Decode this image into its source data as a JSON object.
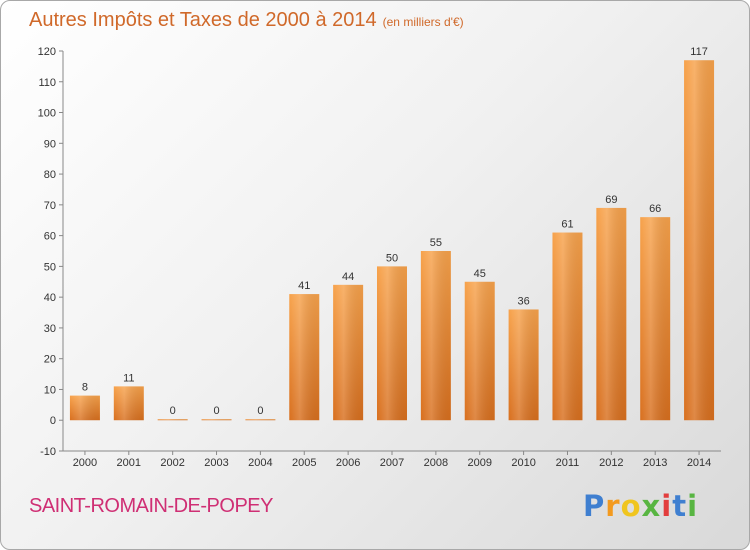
{
  "chart_data": {
    "type": "bar",
    "title": "Autres Impôts et Taxes de 2000 à 2014",
    "subtitle": "(en milliers d'€)",
    "categories": [
      "2000",
      "2001",
      "2002",
      "2003",
      "2004",
      "2005",
      "2006",
      "2007",
      "2008",
      "2009",
      "2010",
      "2011",
      "2012",
      "2013",
      "2014"
    ],
    "values": [
      8,
      11,
      0,
      0,
      0,
      41,
      44,
      50,
      55,
      45,
      36,
      61,
      69,
      66,
      117
    ],
    "ylim": [
      -10,
      120
    ],
    "yticks": [
      -10,
      0,
      10,
      20,
      30,
      40,
      50,
      60,
      70,
      80,
      90,
      100,
      110,
      120
    ],
    "grid": false,
    "bar_color": "#f0913a",
    "bar_color_dark": "#d86f1e"
  },
  "commune": "SAINT-ROMAIN-DE-POPEY",
  "logo": {
    "letters": [
      "P",
      "r",
      "o",
      "x",
      "i",
      "t",
      "i"
    ],
    "colors": [
      "#3f7fd0",
      "#f39a1f",
      "#f0c51f",
      "#58b542",
      "#e23d3d",
      "#3f7fd0",
      "#58b542"
    ]
  }
}
